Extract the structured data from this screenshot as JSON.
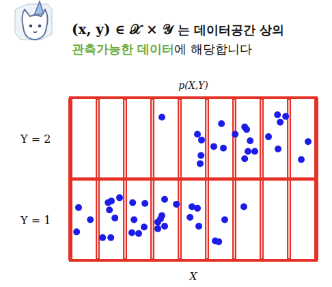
{
  "header": {
    "line1_math": "(x, y) ∈ 𝒳 × 𝒴",
    "line1_text": "는 데이터공간 상의",
    "line2_highlight": "관측가능한 데이터",
    "line2_text": "에 해당합니다"
  },
  "chart_data": {
    "type": "scatter",
    "title": "p(X,Y)",
    "x_label": "X",
    "xlim": [
      0,
      9
    ],
    "xticks": [
      0,
      1,
      2,
      3,
      4,
      5,
      6,
      7,
      8,
      9
    ],
    "ylim": [
      0.5,
      2.5
    ],
    "yticks": [
      {
        "value": 1,
        "label": "Y = 1"
      },
      {
        "value": 2,
        "label": "Y = 2"
      }
    ],
    "grid": true,
    "tick_labels": "y",
    "color": "#1c1ce8",
    "marker": "circle",
    "x": [
      3.35,
      4.65,
      4.8,
      5.53,
      5.25,
      5.6,
      4.78,
      4.75,
      6.03,
      6.38,
      6.45,
      6.58,
      6.5,
      6.38,
      6.75,
      7.58,
      7.68,
      7.88,
      7.25,
      7.6,
      8.45,
      8.7,
      0.3,
      0.73,
      0.23,
      1.38,
      1.5,
      1.8,
      1.63,
      1.43,
      1.18,
      1.48,
      2.28,
      2.73,
      2.33,
      2.7,
      2.5,
      2.25,
      3.45,
      3.88,
      3.35,
      3.2,
      3.3,
      3.45,
      3.2,
      4.45,
      4.65,
      4.38,
      4.7,
      5.65,
      5.3,
      5.43,
      6.35
    ],
    "values": [
      2.26,
      2.05,
      1.98,
      2.18,
      1.9,
      1.88,
      1.79,
      1.69,
      2.05,
      2.14,
      2.11,
      1.97,
      1.84,
      1.75,
      1.84,
      2.29,
      2.2,
      2.27,
      2.02,
      1.87,
      1.74,
      1.96,
      1.15,
      1.0,
      0.85,
      1.21,
      1.23,
      1.27,
      1.02,
      1.12,
      0.78,
      0.78,
      1.21,
      1.2,
      1.0,
      0.91,
      0.83,
      0.84,
      1.25,
      1.19,
      1.05,
      0.97,
      1.01,
      0.92,
      0.89,
      1.16,
      1.14,
      1.03,
      0.92,
      1.0,
      0.74,
      0.73,
      1.16
    ]
  }
}
